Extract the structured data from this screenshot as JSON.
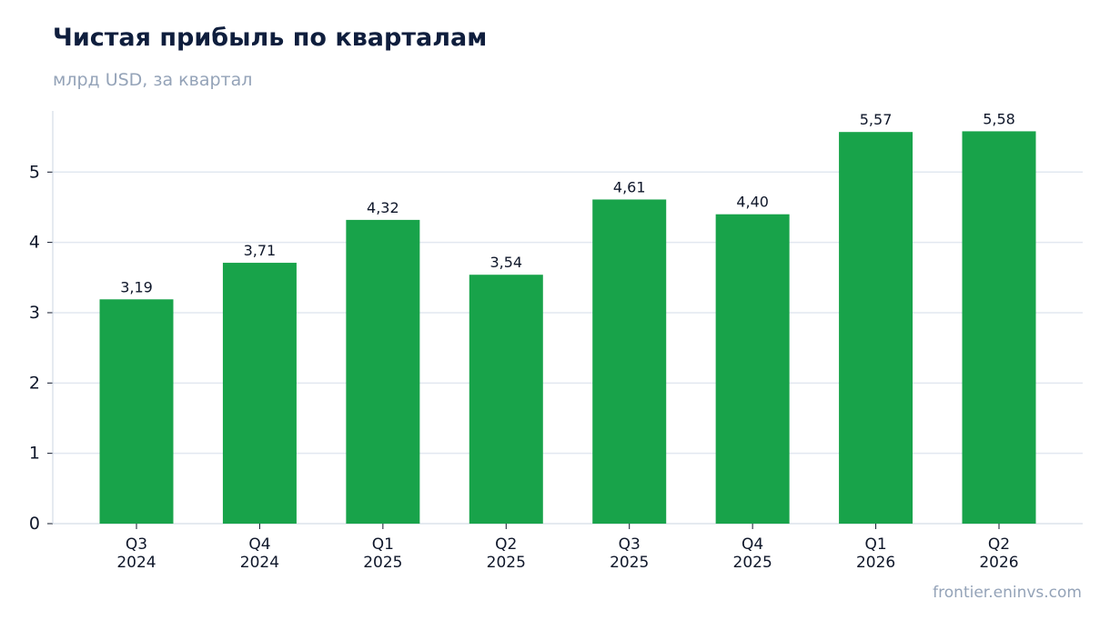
{
  "title": "Чистая прибыль по кварталам",
  "subtitle": "млрд USD, за квартал",
  "source": "frontier.eninvs.com",
  "colors": {
    "bar": "#18a34a",
    "grid": "#e2e8f0",
    "axis": "#cbd5e1",
    "text": "#0f172a",
    "muted": "#94a3b8"
  },
  "chart_data": {
    "type": "bar",
    "categories": [
      [
        "Q3",
        "2024"
      ],
      [
        "Q4",
        "2024"
      ],
      [
        "Q1",
        "2025"
      ],
      [
        "Q2",
        "2025"
      ],
      [
        "Q3",
        "2025"
      ],
      [
        "Q4",
        "2025"
      ],
      [
        "Q1",
        "2026"
      ],
      [
        "Q2",
        "2026"
      ]
    ],
    "values": [
      3.19,
      3.71,
      4.32,
      3.54,
      4.61,
      4.4,
      5.57,
      5.58
    ],
    "value_labels": [
      "3,19",
      "3,71",
      "4,32",
      "3,54",
      "4,61",
      "4,40",
      "5,57",
      "5,58"
    ],
    "yticks": [
      0,
      1,
      2,
      3,
      4,
      5
    ],
    "ylim": [
      0,
      5.87
    ],
    "grid": true,
    "legend": "none"
  }
}
